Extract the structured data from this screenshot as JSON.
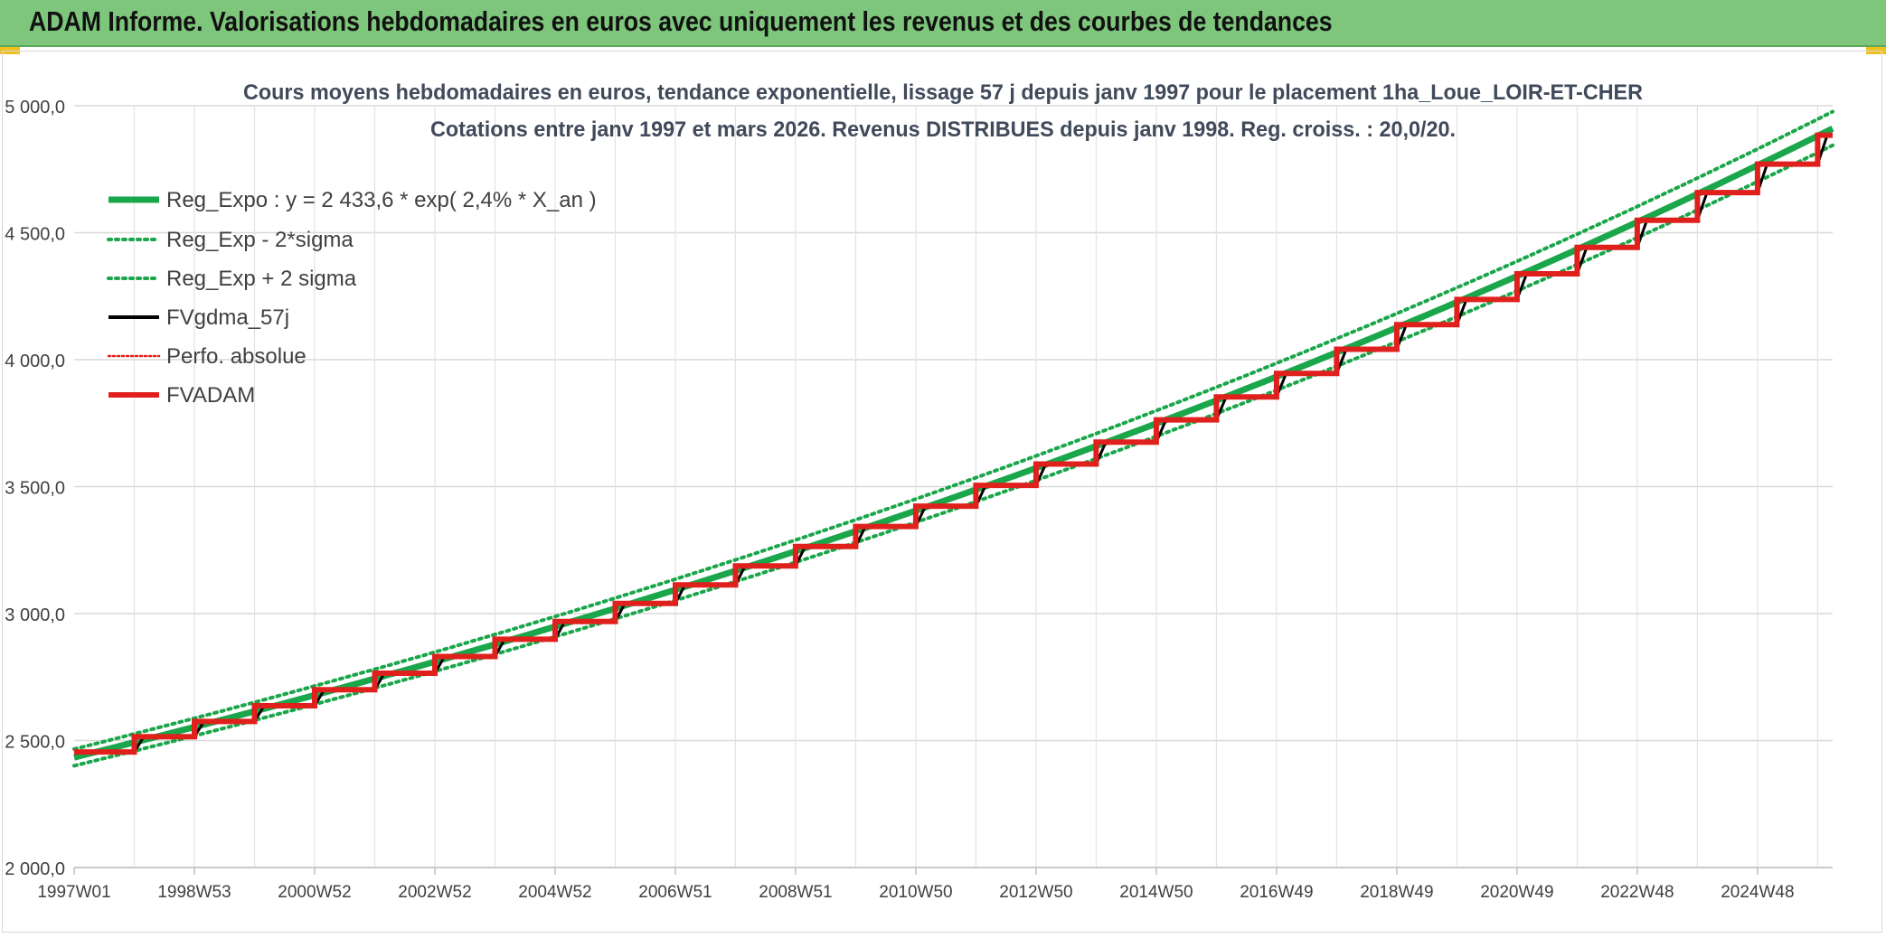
{
  "header": {
    "title": "ADAM Informe. Valorisations hebdomadaires en euros avec uniquement les revenus et des courbes de tendances"
  },
  "chart_data": {
    "type": "line",
    "title_line1": "Cours moyens hebdomadaires en euros, tendance exponentielle, lissage 57 j depuis janv 1997 pour le placement 1ha_Loue_LOIR-ET-CHER",
    "title_line2": "Cotations entre janv 1997 et mars 2026. Revenus DISTRIBUES depuis janv 1998. Reg. croiss. : 20,0/20.",
    "xlabel": "",
    "ylabel": "",
    "ylim": [
      2000,
      5000
    ],
    "xlim": [
      1997.0,
      2026.25
    ],
    "y_ticks": [
      "2 000,0",
      "2 500,0",
      "3 000,0",
      "3 500,0",
      "4 000,0",
      "4 500,0",
      "5 000,0"
    ],
    "y_tick_values": [
      2000,
      2500,
      3000,
      3500,
      4000,
      4500,
      5000
    ],
    "x_ticks": [
      "1997W01",
      "1998W53",
      "2000W52",
      "2002W52",
      "2004W52",
      "2006W51",
      "2008W51",
      "2010W50",
      "2012W50",
      "2014W50",
      "2016W49",
      "2018W49",
      "2020W49",
      "2022W48",
      "2024W48"
    ],
    "x_tick_values": [
      1997.0,
      1999.0,
      2001.0,
      2003.0,
      2005.0,
      2007.0,
      2009.0,
      2011.0,
      2013.0,
      2015.0,
      2017.0,
      2019.0,
      2021.0,
      2023.0,
      2025.0
    ],
    "grid": true,
    "legend_position": "top-left",
    "trend": {
      "a": 2433.6,
      "rate": 0.024,
      "sigma_factor": 0.0135
    },
    "step_values": [
      2455,
      2515,
      2575,
      2637,
      2700,
      2765,
      2831,
      2899,
      2969,
      3040,
      3113,
      3188,
      3264,
      3343,
      3423,
      3505,
      3589,
      3675,
      3763,
      3853,
      3946,
      4041,
      4138,
      4237,
      4338,
      4442,
      4549,
      4658,
      4770,
      4884
    ],
    "series": [
      {
        "name": "Reg_Expo : y = 2 433,6 * exp( 2,4% *  X_an )",
        "color": "#1aa64a",
        "style": "solid"
      },
      {
        "name": "Reg_Exp - 2*sigma",
        "color": "#1aa64a",
        "style": "dotted"
      },
      {
        "name": "Reg_Exp + 2 sigma",
        "color": "#1aa64a",
        "style": "dotted"
      },
      {
        "name": "FVgdma_57j",
        "color": "#000000",
        "style": "solid"
      },
      {
        "name": "Perfo. absolue",
        "color": "#e0201c",
        "style": "dotted"
      },
      {
        "name": "FVADAM",
        "color": "#e0201c",
        "style": "solid"
      }
    ]
  }
}
